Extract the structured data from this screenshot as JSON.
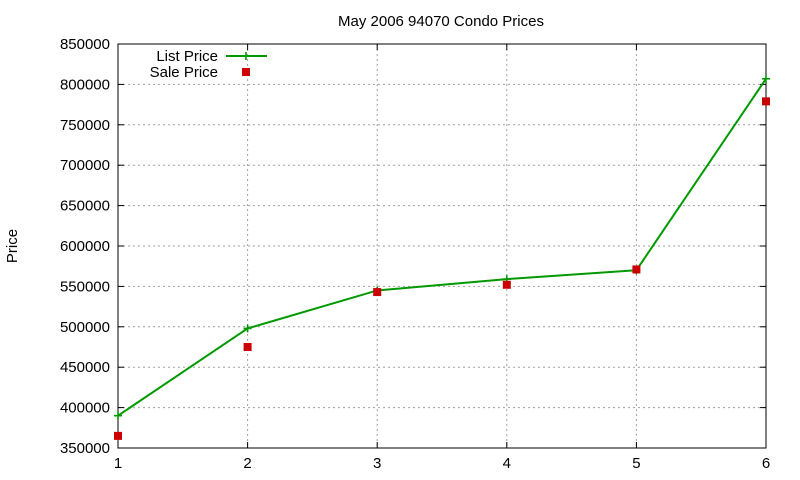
{
  "chart_data": {
    "type": "line",
    "title": "May 2006 94070 Condo Prices",
    "xlabel": "",
    "ylabel": "Price",
    "x": [
      1,
      2,
      3,
      4,
      5,
      6
    ],
    "xlim": [
      1,
      6
    ],
    "ylim": [
      350000,
      850000
    ],
    "xticks": [
      1,
      2,
      3,
      4,
      5,
      6
    ],
    "yticks": [
      350000,
      400000,
      450000,
      500000,
      550000,
      600000,
      650000,
      700000,
      750000,
      800000,
      850000
    ],
    "grid": true,
    "legend_position": "top-left",
    "series": [
      {
        "name": "List Price",
        "style": "line-points",
        "color": "#009900",
        "marker": "plus",
        "values": [
          390000,
          498000,
          545000,
          559000,
          570000,
          807000
        ]
      },
      {
        "name": "Sale Price",
        "style": "points",
        "color": "#cc0000",
        "marker": "square",
        "values": [
          365000,
          475000,
          543000,
          552000,
          571000,
          779000
        ]
      }
    ]
  }
}
